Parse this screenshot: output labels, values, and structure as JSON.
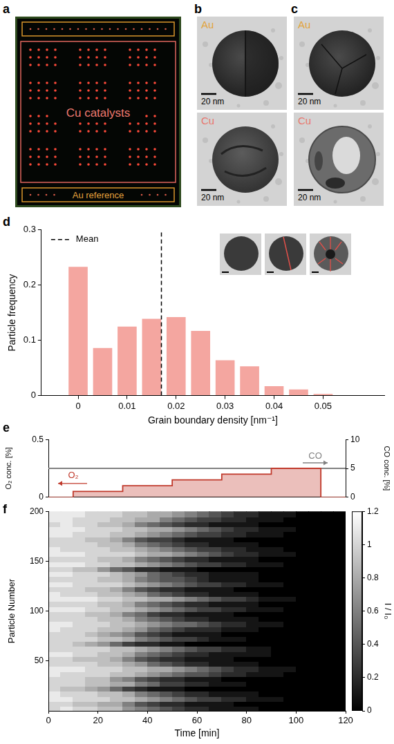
{
  "panels": [
    {
      "label": "a",
      "catalyst_region": "Cu catalysts",
      "reference_region": "Au reference"
    },
    {
      "label": "b",
      "images": [
        {
          "element": "Au",
          "color": "#e2a33b",
          "scale_bar": "20 nm"
        },
        {
          "element": "Cu",
          "color": "#e8776e",
          "scale_bar": "20 nm"
        }
      ]
    },
    {
      "label": "c",
      "images": [
        {
          "element": "Au",
          "color": "#e2a33b",
          "scale_bar": "20 nm"
        },
        {
          "element": "Cu",
          "color": "#e8776e",
          "scale_bar": "20 nm"
        }
      ]
    }
  ],
  "chart_data": [
    {
      "panel_label": "d",
      "type": "histogram",
      "x_label": "Grain boundary density [nm⁻¹]",
      "y_label": "Particle frequency",
      "bins": [
        -0.0025,
        0.0025,
        0.0075,
        0.0125,
        0.0175,
        0.0225,
        0.0275,
        0.0325,
        0.0375,
        0.0425,
        0.0475,
        0.0525
      ],
      "counts": [
        0.233,
        0.086,
        0.125,
        0.139,
        0.142,
        0.117,
        0.064,
        0.053,
        0.017,
        0.011,
        0.003
      ],
      "color": "#f4a6a0",
      "xlim": [
        -0.0075,
        0.0625
      ],
      "xticks": [
        0,
        0.01,
        0.02,
        0.03,
        0.04,
        0.05
      ],
      "ylim": [
        0,
        0.3
      ],
      "yticks": [
        0,
        0.1,
        0.2,
        0.3
      ],
      "mean": {
        "name": "Mean",
        "value": 0.017,
        "color": "#000000",
        "line_style": "dashed"
      },
      "legend": "upper left",
      "grid": false
    },
    {
      "panel_label": "e",
      "type": "line",
      "x": [
        0,
        10,
        30,
        50,
        70,
        90,
        110,
        120
      ],
      "series": [
        {
          "name": "O₂",
          "type": "step",
          "color": "#c0392b",
          "values": [
            0,
            0.05,
            0.1,
            0.15,
            0.2,
            0.25,
            0,
            0
          ]
        },
        {
          "name": "CO",
          "axis": "y2",
          "color": "#808080",
          "values": [
            5,
            5,
            5,
            5,
            5,
            5,
            5,
            5
          ]
        }
      ],
      "y_label": "O₂ conc. [%]",
      "y2_label": "CO conc. [%]",
      "xlim": [
        0,
        120
      ],
      "ylim": [
        0,
        0.5
      ],
      "yticks": [
        0,
        0.5
      ],
      "y2lim": [
        0,
        10
      ],
      "y2ticks": [
        0,
        5,
        10
      ],
      "tick_labels": "y",
      "grid": false
    },
    {
      "panel_label": "f",
      "type": "heatmap",
      "x_label": "Time [min]",
      "y_label": "Particle Number",
      "x_bins": [
        0,
        5,
        10,
        15,
        20,
        25,
        30,
        35,
        40,
        45,
        50,
        55,
        60,
        65,
        70,
        75,
        80,
        85,
        90,
        95,
        100,
        105,
        110,
        115,
        120
      ],
      "y_bins": [
        0,
        5,
        10,
        15,
        20,
        25,
        30,
        35,
        40,
        45,
        50,
        55,
        60,
        65,
        70,
        75,
        80,
        85,
        90,
        95,
        100,
        105,
        110,
        115,
        120,
        125,
        130,
        135,
        140,
        145,
        150,
        155,
        160,
        165,
        170,
        175,
        180,
        185,
        190,
        195,
        200
      ],
      "cells": [
        [
          1.0,
          1.1,
          1.0,
          1.0,
          0.9,
          0.9,
          0.7,
          0.6,
          0.5,
          0.4,
          0.3,
          0.2,
          0.2,
          0.1,
          0.1,
          0.1,
          0.1,
          0.0,
          0.0,
          0.0,
          0.0,
          0.0,
          0.0,
          0.0
        ],
        [
          1.0,
          1.0,
          0.9,
          0.9,
          0.8,
          0.8,
          0.6,
          0.4,
          0.3,
          0.2,
          0.2,
          0.1,
          0.1,
          0.1,
          0.1,
          0.0,
          0.0,
          0.0,
          0.0,
          0.0,
          0.0,
          0.0,
          0.0,
          0.0
        ],
        [
          1.1,
          1.1,
          1.0,
          1.0,
          1.0,
          0.9,
          0.9,
          0.8,
          0.7,
          0.6,
          0.5,
          0.4,
          0.3,
          0.3,
          0.2,
          0.2,
          0.1,
          0.1,
          0.1,
          0.0,
          0.0,
          0.0,
          0.0,
          0.0
        ],
        [
          1.1,
          1.0,
          1.0,
          1.0,
          0.9,
          0.9,
          0.8,
          0.6,
          0.5,
          0.4,
          0.3,
          0.2,
          0.2,
          0.1,
          0.1,
          0.1,
          0.1,
          0.0,
          0.0,
          0.0,
          0.0,
          0.0,
          0.0,
          0.0
        ],
        [
          1.0,
          0.9,
          0.9,
          0.8,
          0.7,
          0.5,
          0.3,
          0.2,
          0.1,
          0.1,
          0.1,
          0.0,
          0.0,
          0.0,
          0.0,
          0.0,
          0.0,
          0.0,
          0.0,
          0.0,
          0.0,
          0.0,
          0.0,
          0.0
        ],
        [
          1.0,
          1.0,
          1.0,
          0.9,
          0.9,
          0.8,
          0.8,
          0.6,
          0.5,
          0.3,
          0.3,
          0.2,
          0.2,
          0.1,
          0.1,
          0.1,
          0.0,
          0.0,
          0.0,
          0.0,
          0.0,
          0.0,
          0.0,
          0.0
        ],
        [
          1.0,
          1.0,
          1.0,
          0.9,
          0.9,
          0.7,
          0.6,
          0.4,
          0.3,
          0.2,
          0.2,
          0.1,
          0.1,
          0.1,
          0.0,
          0.0,
          0.0,
          0.0,
          0.0,
          0.0,
          0.0,
          0.0,
          0.0,
          0.0
        ],
        [
          1.1,
          1.0,
          1.0,
          1.0,
          1.0,
          0.9,
          0.9,
          0.8,
          0.7,
          0.6,
          0.5,
          0.4,
          0.4,
          0.3,
          0.2,
          0.2,
          0.1,
          0.1,
          0.1,
          0.0,
          0.0,
          0.0,
          0.0,
          0.0
        ],
        [
          1.1,
          1.1,
          1.1,
          1.0,
          1.0,
          1.0,
          0.9,
          0.9,
          0.8,
          0.8,
          0.7,
          0.6,
          0.5,
          0.4,
          0.3,
          0.2,
          0.2,
          0.1,
          0.1,
          0.1,
          0.0,
          0.0,
          0.0,
          0.0
        ],
        [
          1.0,
          1.0,
          1.0,
          1.0,
          0.9,
          0.9,
          0.8,
          0.7,
          0.5,
          0.4,
          0.3,
          0.2,
          0.2,
          0.1,
          0.1,
          0.1,
          0.1,
          0.0,
          0.0,
          0.0,
          0.0,
          0.0,
          0.0,
          0.0
        ],
        [
          1.0,
          1.0,
          0.9,
          0.9,
          0.9,
          0.8,
          0.6,
          0.4,
          0.3,
          0.2,
          0.2,
          0.1,
          0.1,
          0.1,
          0.1,
          0.0,
          0.0,
          0.0,
          0.0,
          0.0,
          0.0,
          0.0,
          0.0,
          0.0
        ],
        [
          1.1,
          1.1,
          1.0,
          1.0,
          0.9,
          0.9,
          0.8,
          0.6,
          0.5,
          0.4,
          0.3,
          0.2,
          0.2,
          0.1,
          0.1,
          0.1,
          0.1,
          0.1,
          0.0,
          0.0,
          0.0,
          0.0,
          0.0,
          0.0
        ],
        [
          1.0,
          1.0,
          1.0,
          1.0,
          1.0,
          0.9,
          0.9,
          0.8,
          0.7,
          0.6,
          0.5,
          0.4,
          0.3,
          0.3,
          0.2,
          0.2,
          0.1,
          0.1,
          0.0,
          0.0,
          0.0,
          0.0,
          0.0,
          0.0
        ],
        [
          1.0,
          1.0,
          0.9,
          0.8,
          0.7,
          0.5,
          0.3,
          0.2,
          0.2,
          0.1,
          0.1,
          0.0,
          0.0,
          0.0,
          0.0,
          0.0,
          0.0,
          0.0,
          0.0,
          0.0,
          0.0,
          0.0,
          0.0,
          0.0
        ],
        [
          1.0,
          1.0,
          1.0,
          1.0,
          0.9,
          0.9,
          0.8,
          0.6,
          0.5,
          0.4,
          0.3,
          0.3,
          0.2,
          0.1,
          0.1,
          0.1,
          0.0,
          0.0,
          0.0,
          0.0,
          0.0,
          0.0,
          0.0,
          0.0
        ],
        [
          1.0,
          1.0,
          1.0,
          0.9,
          0.8,
          0.7,
          0.6,
          0.4,
          0.3,
          0.2,
          0.1,
          0.1,
          0.1,
          0.1,
          0.0,
          0.0,
          0.0,
          0.0,
          0.0,
          0.0,
          0.0,
          0.0,
          0.0,
          0.0
        ],
        [
          1.1,
          1.0,
          1.0,
          1.0,
          0.9,
          0.9,
          0.8,
          0.7,
          0.5,
          0.4,
          0.3,
          0.2,
          0.2,
          0.2,
          0.1,
          0.1,
          0.1,
          0.0,
          0.0,
          0.0,
          0.0,
          0.0,
          0.0,
          0.0
        ],
        [
          1.1,
          1.1,
          1.0,
          1.0,
          1.0,
          0.9,
          0.9,
          0.8,
          0.7,
          0.6,
          0.5,
          0.5,
          0.4,
          0.3,
          0.2,
          0.2,
          0.1,
          0.1,
          0.1,
          0.0,
          0.0,
          0.0,
          0.0,
          0.0
        ],
        [
          1.0,
          1.0,
          1.0,
          1.0,
          0.9,
          0.9,
          0.8,
          0.6,
          0.5,
          0.4,
          0.3,
          0.2,
          0.2,
          0.1,
          0.1,
          0.1,
          0.1,
          0.0,
          0.0,
          0.0,
          0.0,
          0.0,
          0.0,
          0.0
        ],
        [
          1.0,
          1.0,
          1.0,
          0.9,
          0.9,
          0.8,
          0.6,
          0.5,
          0.3,
          0.2,
          0.2,
          0.1,
          0.1,
          0.1,
          0.1,
          0.0,
          0.0,
          0.0,
          0.0,
          0.0,
          0.0,
          0.0,
          0.0,
          0.0
        ],
        [
          1.1,
          1.1,
          1.1,
          1.0,
          1.0,
          0.9,
          0.9,
          0.8,
          0.7,
          0.6,
          0.5,
          0.4,
          0.3,
          0.3,
          0.2,
          0.2,
          0.1,
          0.1,
          0.1,
          0.0,
          0.0,
          0.0,
          0.0,
          0.0
        ],
        [
          1.0,
          1.0,
          1.0,
          1.0,
          0.9,
          0.9,
          0.8,
          0.6,
          0.5,
          0.4,
          0.3,
          0.2,
          0.2,
          0.1,
          0.1,
          0.1,
          0.1,
          0.0,
          0.0,
          0.0,
          0.0,
          0.0,
          0.0,
          0.0
        ],
        [
          1.1,
          1.1,
          1.1,
          1.1,
          1.0,
          1.0,
          0.9,
          0.9,
          0.8,
          0.8,
          0.7,
          0.6,
          0.5,
          0.4,
          0.3,
          0.3,
          0.2,
          0.1,
          0.1,
          0.1,
          0.0,
          0.0,
          0.0,
          0.0
        ],
        [
          1.1,
          1.0,
          1.0,
          1.0,
          0.9,
          0.9,
          0.8,
          0.7,
          0.5,
          0.4,
          0.3,
          0.2,
          0.2,
          0.1,
          0.1,
          0.1,
          0.1,
          0.0,
          0.0,
          0.0,
          0.0,
          0.0,
          0.0,
          0.0
        ],
        [
          1.0,
          1.0,
          1.0,
          0.9,
          0.9,
          0.8,
          0.6,
          0.4,
          0.3,
          0.2,
          0.2,
          0.1,
          0.1,
          0.1,
          0.1,
          0.0,
          0.0,
          0.0,
          0.0,
          0.0,
          0.0,
          0.0,
          0.0,
          0.0
        ],
        [
          1.1,
          1.1,
          1.0,
          1.0,
          1.0,
          1.0,
          0.9,
          0.8,
          0.7,
          0.6,
          0.5,
          0.4,
          0.3,
          0.3,
          0.2,
          0.2,
          0.1,
          0.1,
          0.1,
          0.0,
          0.0,
          0.0,
          0.0,
          0.0
        ],
        [
          1.0,
          1.0,
          1.0,
          1.0,
          0.9,
          0.9,
          0.8,
          0.6,
          0.5,
          0.4,
          0.4,
          0.3,
          0.2,
          0.1,
          0.1,
          0.1,
          0.1,
          0.0,
          0.0,
          0.0,
          0.0,
          0.0,
          0.0,
          0.0
        ],
        [
          1.1,
          1.1,
          1.0,
          1.0,
          1.0,
          0.9,
          0.8,
          0.7,
          0.5,
          0.4,
          0.3,
          0.2,
          0.2,
          0.1,
          0.1,
          0.1,
          0.1,
          0.0,
          0.0,
          0.0,
          0.0,
          0.0,
          0.0,
          0.0
        ],
        [
          1.0,
          1.0,
          0.9,
          0.9,
          0.7,
          0.5,
          0.4,
          0.2,
          0.2,
          0.1,
          0.1,
          0.1,
          0.0,
          0.0,
          0.0,
          0.0,
          0.0,
          0.0,
          0.0,
          0.0,
          0.0,
          0.0,
          0.0,
          0.0
        ],
        [
          1.1,
          1.1,
          1.1,
          1.0,
          1.0,
          0.9,
          0.9,
          0.8,
          0.7,
          0.6,
          0.5,
          0.4,
          0.3,
          0.3,
          0.2,
          0.2,
          0.1,
          0.1,
          0.1,
          0.0,
          0.0,
          0.0,
          0.0,
          0.0
        ],
        [
          1.0,
          1.0,
          1.0,
          1.0,
          0.9,
          0.9,
          0.8,
          0.6,
          0.5,
          0.4,
          0.3,
          0.2,
          0.2,
          0.1,
          0.1,
          0.1,
          0.1,
          0.0,
          0.0,
          0.0,
          0.0,
          0.0,
          0.0,
          0.0
        ],
        [
          1.1,
          1.1,
          1.1,
          1.0,
          1.0,
          1.0,
          1.0,
          0.9,
          0.8,
          0.8,
          0.7,
          0.6,
          0.5,
          0.4,
          0.3,
          0.2,
          0.2,
          0.1,
          0.1,
          0.1,
          0.0,
          0.0,
          0.0,
          0.0
        ],
        [
          1.1,
          1.0,
          1.0,
          1.0,
          1.0,
          0.9,
          0.9,
          0.8,
          0.7,
          0.6,
          0.5,
          0.4,
          0.3,
          0.3,
          0.2,
          0.2,
          0.1,
          0.1,
          0.1,
          0.0,
          0.0,
          0.0,
          0.0,
          0.0
        ],
        [
          1.0,
          1.0,
          1.0,
          1.0,
          0.9,
          0.9,
          0.8,
          0.6,
          0.5,
          0.4,
          0.3,
          0.2,
          0.2,
          0.1,
          0.1,
          0.1,
          0.1,
          0.0,
          0.0,
          0.0,
          0.0,
          0.0,
          0.0,
          0.0
        ],
        [
          1.0,
          1.0,
          1.0,
          0.9,
          0.9,
          0.8,
          0.6,
          0.4,
          0.3,
          0.3,
          0.2,
          0.1,
          0.1,
          0.1,
          0.1,
          0.0,
          0.0,
          0.0,
          0.0,
          0.0,
          0.0,
          0.0,
          0.0,
          0.0
        ],
        [
          1.1,
          1.1,
          1.0,
          1.0,
          1.0,
          0.9,
          0.9,
          0.8,
          0.7,
          0.6,
          0.5,
          0.4,
          0.3,
          0.3,
          0.2,
          0.2,
          0.1,
          0.1,
          0.1,
          0.0,
          0.0,
          0.0,
          0.0,
          0.0
        ],
        [
          1.1,
          1.1,
          1.1,
          1.0,
          1.0,
          1.0,
          0.9,
          0.9,
          0.8,
          0.8,
          0.7,
          0.6,
          0.5,
          0.4,
          0.3,
          0.2,
          0.2,
          0.1,
          0.1,
          0.1,
          0.0,
          0.0,
          0.0,
          0.0
        ],
        [
          1.0,
          1.1,
          1.0,
          1.0,
          0.9,
          0.9,
          0.8,
          0.6,
          0.5,
          0.4,
          0.3,
          0.2,
          0.2,
          0.1,
          0.1,
          0.1,
          0.1,
          0.0,
          0.0,
          0.0,
          0.0,
          0.0,
          0.0,
          0.0
        ],
        [
          1.1,
          1.1,
          1.0,
          1.0,
          1.0,
          0.9,
          0.9,
          0.8,
          0.8,
          0.6,
          0.5,
          0.4,
          0.3,
          0.3,
          0.2,
          0.2,
          0.1,
          0.1,
          0.1,
          0.0,
          0.0,
          0.0,
          0.0,
          0.0
        ],
        [
          1.1,
          1.1,
          1.1,
          1.0,
          1.0,
          1.0,
          0.9,
          0.9,
          0.8,
          0.8,
          0.7,
          0.6,
          0.5,
          0.4,
          0.3,
          0.2,
          0.2,
          0.1,
          0.1,
          0.1,
          0.0,
          0.0,
          0.0,
          0.0
        ]
      ],
      "xlim": [
        0,
        120
      ],
      "xticks": [
        0,
        20,
        40,
        60,
        80,
        100,
        120
      ],
      "ylim": [
        0,
        200
      ],
      "yticks": [
        50,
        100,
        150,
        200
      ],
      "colorbar": {
        "label": "I / I₀",
        "range": [
          0,
          1.2
        ],
        "ticks": [
          0,
          0.2,
          0.4,
          0.6,
          0.8,
          1,
          1.2
        ]
      },
      "grid": false
    }
  ]
}
